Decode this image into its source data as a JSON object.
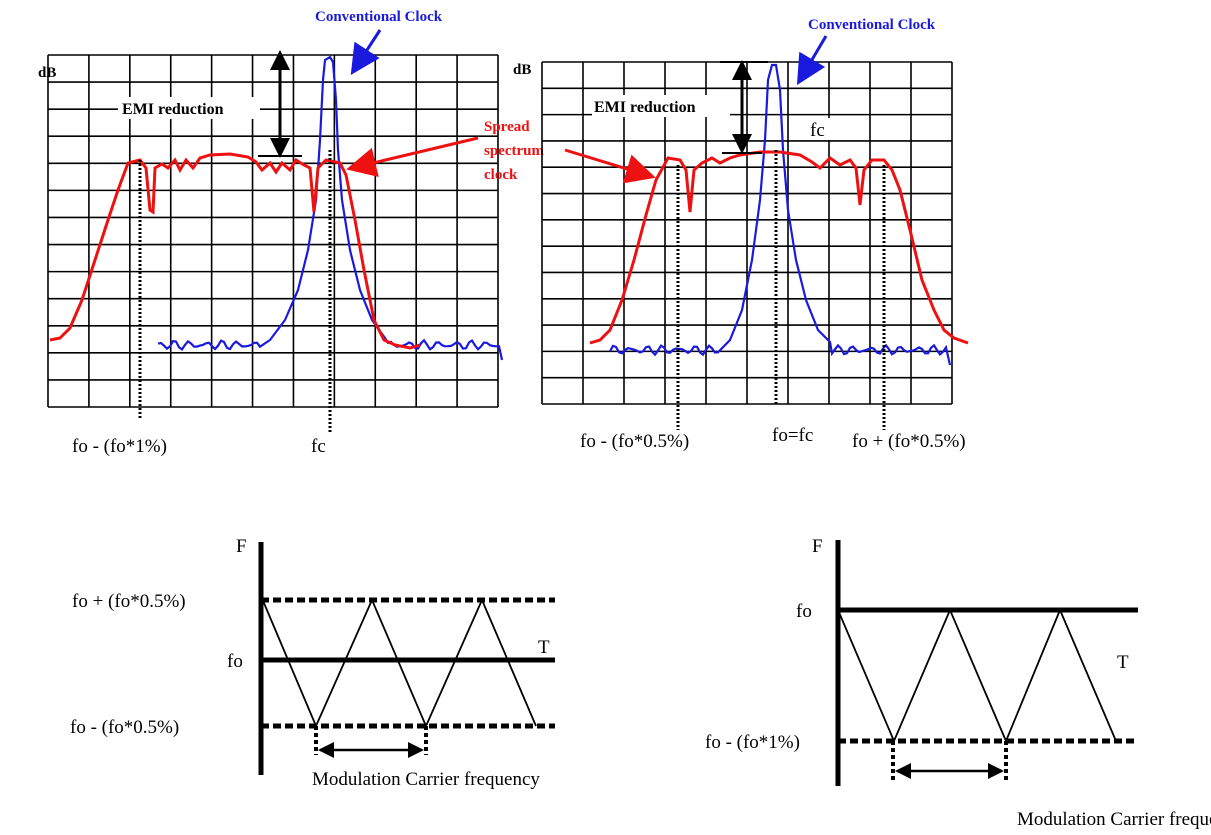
{
  "colors": {
    "conventional": "#1a1adf",
    "spread": "#ee1111",
    "grid": "#000000",
    "text": "#000000"
  },
  "top_left": {
    "ylabel": "dB",
    "conventional_label": "Conventional Clock",
    "emi_label": "EMI reduction",
    "spread_label_lines": [
      "Spread",
      "spectrum",
      "clock"
    ],
    "marker_left": "fo - (fo*1%)",
    "marker_center": "fc"
  },
  "top_right": {
    "ylabel": "dB",
    "conventional_label": "Conventional Clock",
    "emi_label": "EMI reduction",
    "fc_label": "fc",
    "marker_left": "fo - (fo*0.5%)",
    "marker_center": "fo=fc",
    "marker_right": "fo + (fo*0.5%)"
  },
  "bottom_left": {
    "f_label": "F",
    "t_label": "T",
    "upper_label": "fo + (fo*0.5%)",
    "center_label": "fo",
    "lower_label": "fo - (fo*0.5%)",
    "period_label": "Modulation Carrier frequency"
  },
  "bottom_right": {
    "f_label": "F",
    "t_label": "T",
    "upper_label": "fo",
    "lower_label": "fo - (fo*1%)",
    "period_label": "Modulation Carrier frequency"
  }
}
